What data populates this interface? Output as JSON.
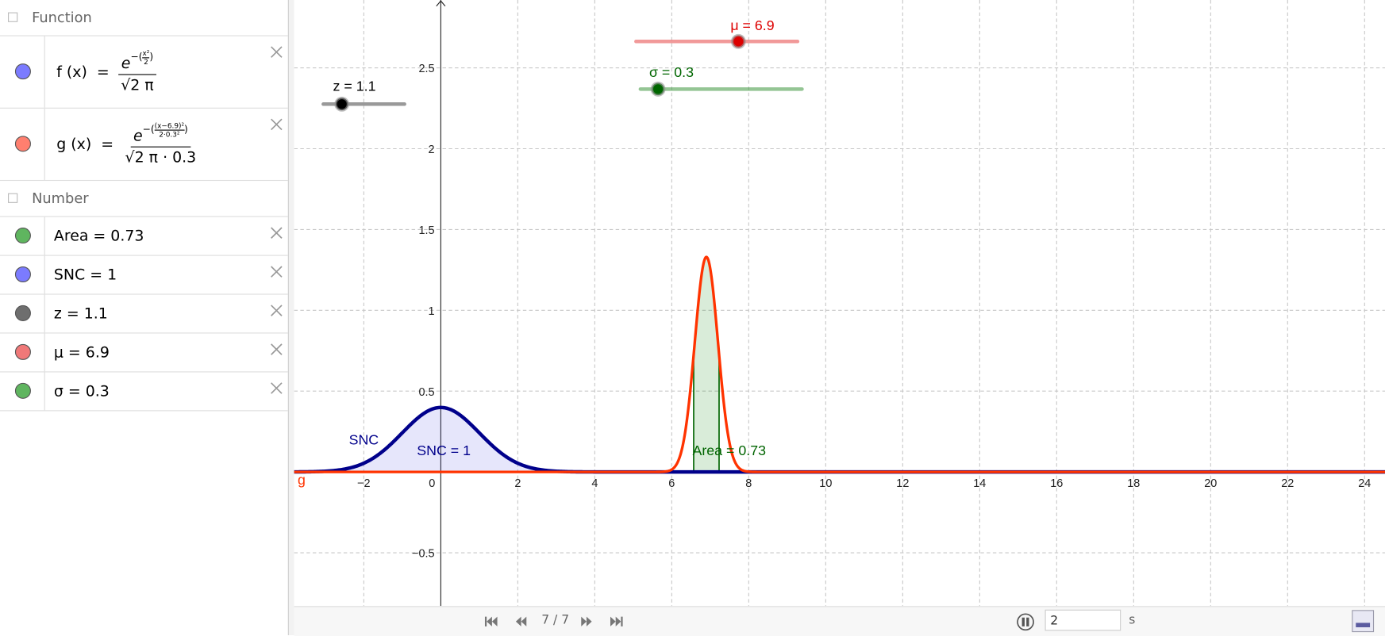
{
  "algebra": {
    "groups": [
      {
        "title": "Function",
        "items": [
          {
            "lhs": "f (x)  =",
            "base": "e",
            "exponent_open": "−(",
            "exponent_num": "x²",
            "exponent_den": "2",
            "exponent_close": ")",
            "denominator": "√2 π",
            "color": "#7b7bff"
          },
          {
            "lhs": "g (x)  =",
            "base": "e",
            "exponent_open": "−(",
            "exponent_num": "(x−6.9)²",
            "exponent_den": "2·0.3²",
            "exponent_close": ")",
            "denominator": "√2 π · 0.3",
            "color": "#ff7f6f"
          }
        ]
      },
      {
        "title": "Number",
        "items": [
          {
            "label": "Area = 0.73",
            "value": 0.73,
            "color": "#5fb55f"
          },
          {
            "label": "SNC = 1",
            "value": 1,
            "color": "#7b7bff"
          },
          {
            "label": "z = 1.1",
            "value": 1.1,
            "color": "#6e6e6e"
          },
          {
            "label": "μ = 6.9",
            "value": 6.9,
            "color": "#f07878"
          },
          {
            "label": "σ = 0.3",
            "value": 0.3,
            "color": "#5fb55f"
          }
        ]
      }
    ]
  },
  "graphics": {
    "xlim": [
      -3.81,
      24.53
    ],
    "ylim": [
      -0.83,
      2.92
    ],
    "xticks": [
      {
        "value": -2,
        "label": "−2"
      },
      0,
      2,
      4,
      6,
      8,
      10,
      12,
      14,
      16,
      18,
      20,
      22,
      24
    ],
    "yticks": [
      {
        "value": -0.5,
        "label": "−0.5"
      },
      0.5,
      1,
      1.5,
      2,
      2.5
    ],
    "grid": true,
    "snc_label": "SNC",
    "g_label": "g",
    "snc_color": "#00008b",
    "g_color": "#ff3300",
    "area_color": "#006400"
  },
  "toolbar": {
    "step": "7 / 7",
    "speed": "2",
    "unit": "s"
  }
}
